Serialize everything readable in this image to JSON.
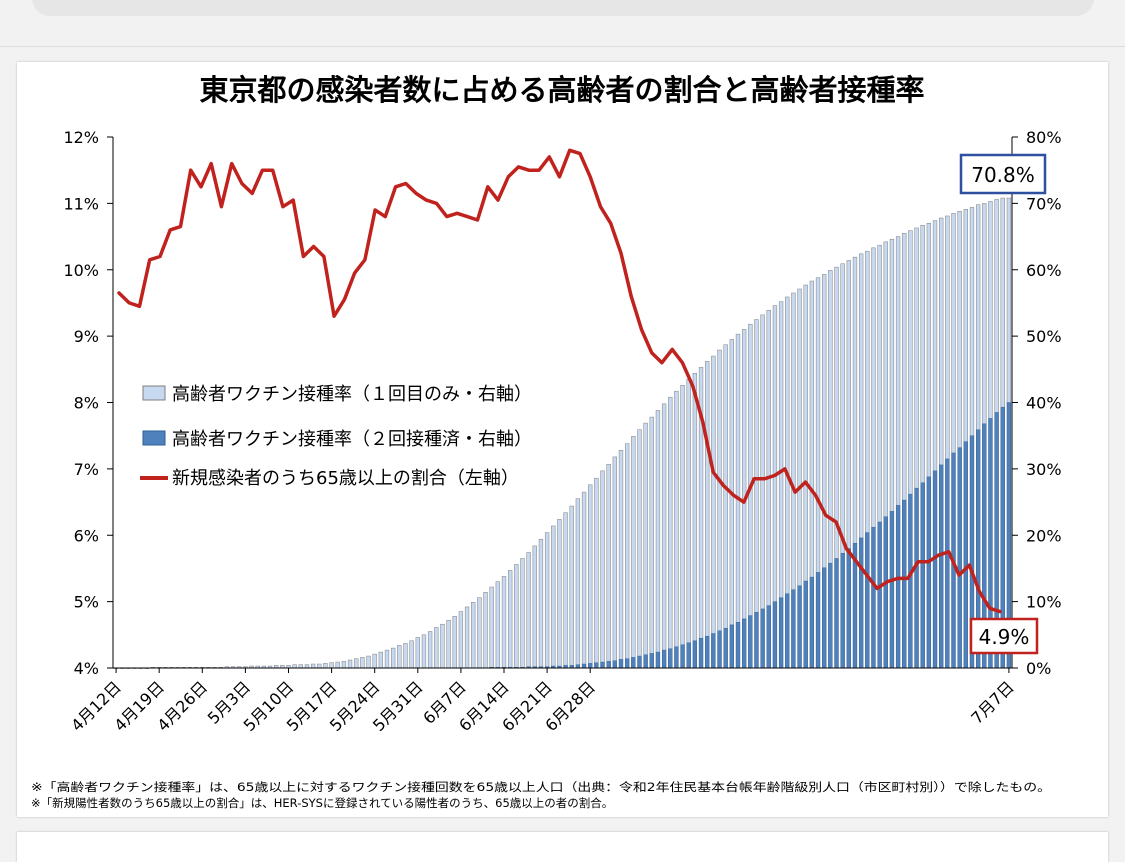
{
  "chart_data": {
    "type": "bar+line",
    "title": "東京都の感染者数に占める高齢者の割合と高齢者接種率",
    "left_axis": {
      "ticks": [
        "12%",
        "11%",
        "10%",
        "9%",
        "8%",
        "7%",
        "6%",
        "5%",
        "4%"
      ],
      "min": 4,
      "max": 12,
      "unit": "%"
    },
    "right_axis": {
      "ticks": [
        "80%",
        "70%",
        "60%",
        "50%",
        "40%",
        "30%",
        "20%",
        "10%",
        "0%"
      ],
      "min": 0,
      "max": 80,
      "unit": "%"
    },
    "x_tick_labels": [
      "4月12日",
      "4月19日",
      "4月26日",
      "5月3日",
      "5月10日",
      "5月17日",
      "5月24日",
      "5月31日",
      "6月7日",
      "6月14日",
      "6月21日",
      "6月28日",
      "7月7日"
    ],
    "start_date": "4月12日",
    "end_date": "7月7日",
    "series": [
      {
        "name": "高齢者ワクチン接種率（１回目のみ・右軸）",
        "type": "bar",
        "axis": "right",
        "color": "#c6d9f1",
        "stroke": "#7f7f7f",
        "values": [
          0.0,
          0.0,
          0.0,
          0.0,
          0.0,
          0.0,
          0.1,
          0.1,
          0.1,
          0.1,
          0.1,
          0.1,
          0.1,
          0.1,
          0.1,
          0.1,
          0.1,
          0.1,
          0.2,
          0.2,
          0.2,
          0.2,
          0.3,
          0.3,
          0.3,
          0.3,
          0.4,
          0.4,
          0.4,
          0.5,
          0.5,
          0.5,
          0.6,
          0.6,
          0.7,
          0.8,
          0.9,
          1.0,
          1.2,
          1.4,
          1.6,
          1.8,
          2.1,
          2.4,
          2.7,
          3.0,
          3.4,
          3.7,
          4.1,
          4.6,
          5.0,
          5.5,
          6.1,
          6.6,
          7.2,
          7.8,
          8.5,
          9.2,
          9.9,
          10.6,
          11.4,
          12.2,
          13.0,
          13.8,
          14.7,
          15.6,
          16.5,
          17.4,
          18.4,
          19.4,
          20.4,
          21.4,
          22.4,
          23.4,
          24.4,
          25.5,
          26.5,
          27.6,
          28.6,
          29.7,
          30.7,
          31.8,
          32.8,
          33.8,
          34.9,
          35.9,
          36.9,
          37.8,
          38.8,
          39.8,
          40.8,
          41.7,
          42.6,
          43.5,
          44.4,
          45.3,
          46.2,
          47.0,
          47.9,
          48.7,
          49.5,
          50.3,
          51.0,
          51.8,
          52.5,
          53.2,
          53.9,
          54.6,
          55.2,
          55.9,
          56.5,
          57.1,
          57.7,
          58.3,
          58.8,
          59.3,
          59.9,
          60.4,
          60.9,
          61.4,
          61.9,
          62.4,
          62.8,
          63.3,
          63.7,
          64.2,
          64.6,
          65.0,
          65.5,
          65.9,
          66.3,
          66.7,
          67.0,
          67.4,
          67.8,
          68.1,
          68.5,
          68.8,
          69.1,
          69.4,
          69.8,
          70.0,
          70.3,
          70.6,
          70.8,
          70.8
        ]
      },
      {
        "name": "高齢者ワクチン接種率（２回接種済・右軸）",
        "type": "bar",
        "axis": "right",
        "color": "#4f81bd",
        "stroke": "#2e5f96",
        "values": [
          0.0,
          0.0,
          0.0,
          0.0,
          0.0,
          0.0,
          0.0,
          0.0,
          0.0,
          0.0,
          0.0,
          0.0,
          0.0,
          0.0,
          0.0,
          0.0,
          0.0,
          0.0,
          0.0,
          0.0,
          0.0,
          0.0,
          0.0,
          0.0,
          0.0,
          0.0,
          0.0,
          0.0,
          0.0,
          0.0,
          0.0,
          0.0,
          0.0,
          0.0,
          0.0,
          0.0,
          0.0,
          0.0,
          0.0,
          0.0,
          0.0,
          0.0,
          0.0,
          0.0,
          0.0,
          0.0,
          0.0,
          0.0,
          0.0,
          0.0,
          0.0,
          0.0,
          0.0,
          0.0,
          0.0,
          0.0,
          0.0,
          0.0,
          0.0,
          0.0,
          0.0,
          0.1,
          0.1,
          0.1,
          0.1,
          0.1,
          0.1,
          0.2,
          0.2,
          0.2,
          0.2,
          0.3,
          0.3,
          0.4,
          0.4,
          0.5,
          0.6,
          0.7,
          0.8,
          0.9,
          1.0,
          1.1,
          1.3,
          1.4,
          1.6,
          1.8,
          2.0,
          2.2,
          2.4,
          2.7,
          2.9,
          3.2,
          3.5,
          3.8,
          4.1,
          4.5,
          4.8,
          5.2,
          5.6,
          6.0,
          6.5,
          6.9,
          7.4,
          7.9,
          8.4,
          8.9,
          9.4,
          10.0,
          10.6,
          11.2,
          11.8,
          12.4,
          13.1,
          13.7,
          14.4,
          15.1,
          15.8,
          16.5,
          17.3,
          18.0,
          18.8,
          19.6,
          20.4,
          21.2,
          22.0,
          22.8,
          23.6,
          24.5,
          25.3,
          26.2,
          27.1,
          27.9,
          28.8,
          29.7,
          30.6,
          31.5,
          32.4,
          33.2,
          34.1,
          35.0,
          35.9,
          36.8,
          37.6,
          38.5,
          39.3,
          40.0
        ]
      },
      {
        "name": "新規感染者のうち65歳以上の割合（左軸）",
        "type": "line",
        "axis": "left",
        "color": "#c0221e",
        "values": [
          9.65,
          9.5,
          9.45,
          10.15,
          10.2,
          10.6,
          10.65,
          11.5,
          11.25,
          11.6,
          10.95,
          11.6,
          11.3,
          11.15,
          11.5,
          11.5,
          10.95,
          11.05,
          10.2,
          10.35,
          10.2,
          9.3,
          9.55,
          9.95,
          10.15,
          10.9,
          10.8,
          11.25,
          11.3,
          11.15,
          11.05,
          11.0,
          10.8,
          10.85,
          10.8,
          10.75,
          11.25,
          11.05,
          11.4,
          11.55,
          11.5,
          11.5,
          11.7,
          11.4,
          11.8,
          11.75,
          11.4,
          10.95,
          10.7,
          10.25,
          9.6,
          9.1,
          8.75,
          8.6,
          8.8,
          8.6,
          8.25,
          7.7,
          6.95,
          6.75,
          6.6,
          6.5,
          6.85,
          6.85,
          6.9,
          7.0,
          6.65,
          6.8,
          6.6,
          6.3,
          6.2,
          5.8,
          5.6,
          5.4,
          5.2,
          5.3,
          5.35,
          5.35,
          5.6,
          5.6,
          5.7,
          5.75,
          5.4,
          5.55,
          5.15,
          4.9,
          4.85
        ]
      }
    ],
    "callouts": {
      "vaccination_last": "70.8%",
      "share_last": "4.9%"
    }
  },
  "legend": [
    {
      "label": "高齢者ワクチン接種率（１回目のみ・右軸）",
      "kind": "swatch",
      "color": "#c6d9f1"
    },
    {
      "label": "高齢者ワクチン接種率（２回接種済・右軸）",
      "kind": "swatch",
      "color": "#4f81bd"
    },
    {
      "label": "新規感染者のうち65歳以上の割合（左軸）",
      "kind": "line",
      "color": "#c0221e"
    }
  ],
  "notes": [
    "※「高齢者ワクチン接種率」は、65歳以上に対するワクチン接種回数を65歳以上人口（出典：令和2年住民基本台帳年齢階級別人口（市区町村別））で除したもの。",
    "※「新規陽性者数のうち65歳以上の割合」は、HER-SYSに登録されている陽性者のうち、65歳以上の者の割合。"
  ],
  "colors": {
    "callout_top_border": "#2f4f9f",
    "callout_bottom_border": "#c0221e"
  }
}
